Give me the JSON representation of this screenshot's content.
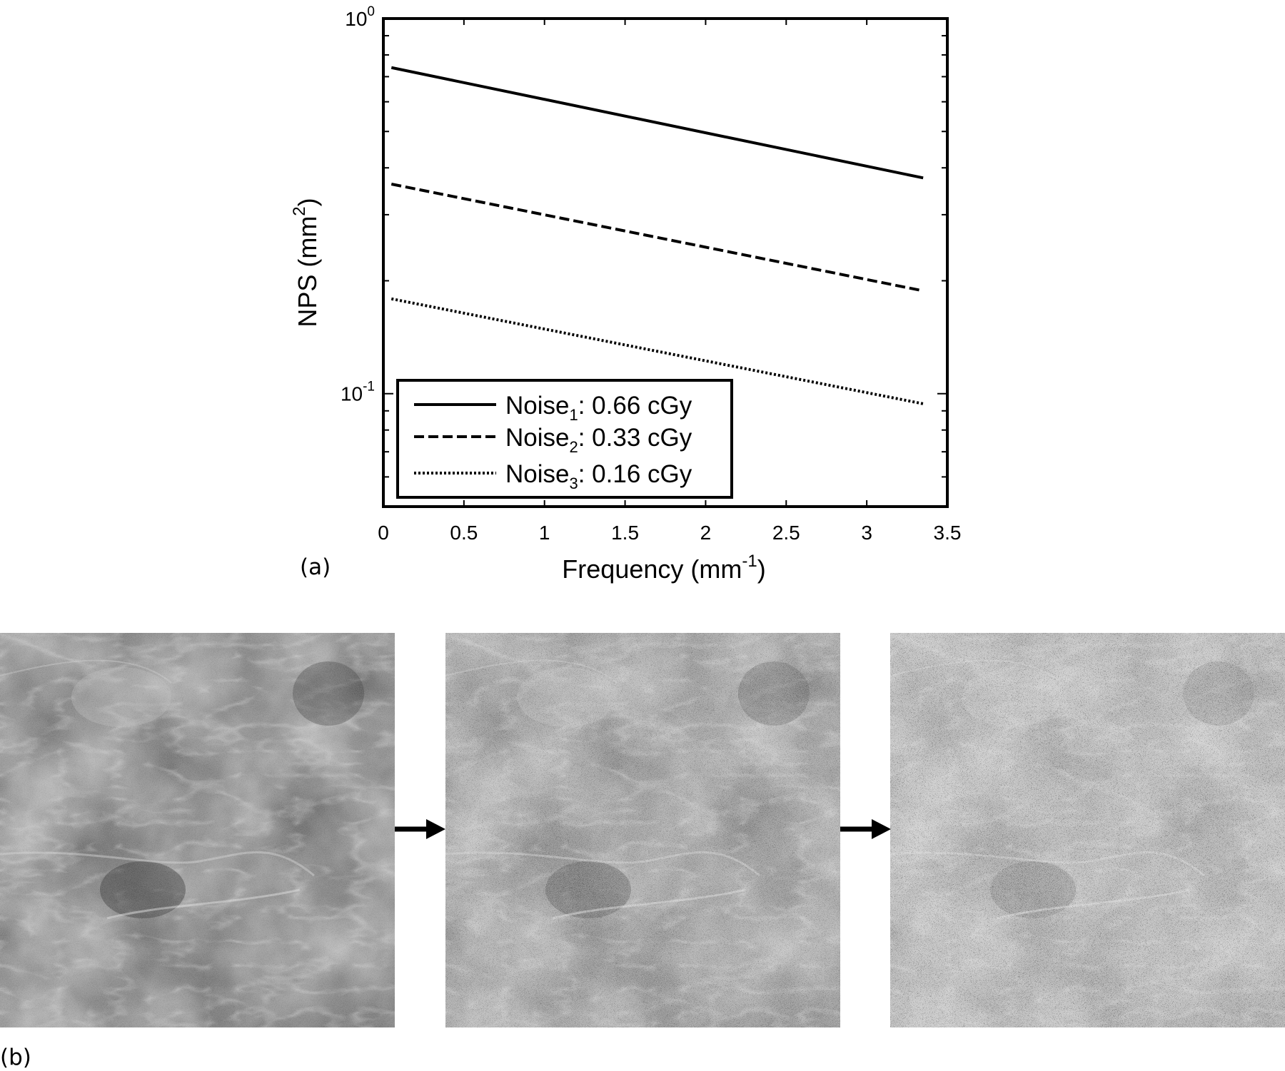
{
  "chart_data": {
    "type": "line",
    "xlabel_main": "Frequency (mm",
    "xlabel_sup": "-1",
    "xlabel_end": ")",
    "ylabel_main": "NPS (mm",
    "ylabel_sup": "2",
    "ylabel_end": ")",
    "xlim": [
      0,
      3.5
    ],
    "ylim": [
      0.05,
      1
    ],
    "yscale": "log",
    "xticks": [
      "0",
      "0.5",
      "1",
      "1.5",
      "2",
      "2.5",
      "3",
      "3.5"
    ],
    "yticks": [
      {
        "base": "10",
        "exp": "0",
        "value": 1
      },
      {
        "base": "10",
        "exp": "-1",
        "value": 0.1
      }
    ],
    "legend_position": "bottom-left",
    "series": [
      {
        "name_pre": "Noise",
        "name_sub": "1",
        "name_post": ": 0.66 cGy",
        "style": "solid",
        "x": [
          0.05,
          3.35
        ],
        "y": [
          0.74,
          0.376
        ]
      },
      {
        "name_pre": "Noise",
        "name_sub": "2",
        "name_post": ": 0.33 cGy",
        "style": "dashed",
        "x": [
          0.05,
          3.35
        ],
        "y": [
          0.362,
          0.188
        ]
      },
      {
        "name_pre": "Noise",
        "name_sub": "3",
        "name_post": ": 0.16 cGy",
        "style": "dotted",
        "x": [
          0.05,
          3.35
        ],
        "y": [
          0.179,
          0.094
        ]
      }
    ]
  },
  "panels": {
    "a_label": "(a)",
    "b_label": "(b)",
    "images": [
      {
        "description_name": "mammogram-original",
        "noise_level": 0
      },
      {
        "description_name": "mammogram-noise-medium",
        "noise_level": 1
      },
      {
        "description_name": "mammogram-noise-high",
        "noise_level": 2
      }
    ]
  }
}
